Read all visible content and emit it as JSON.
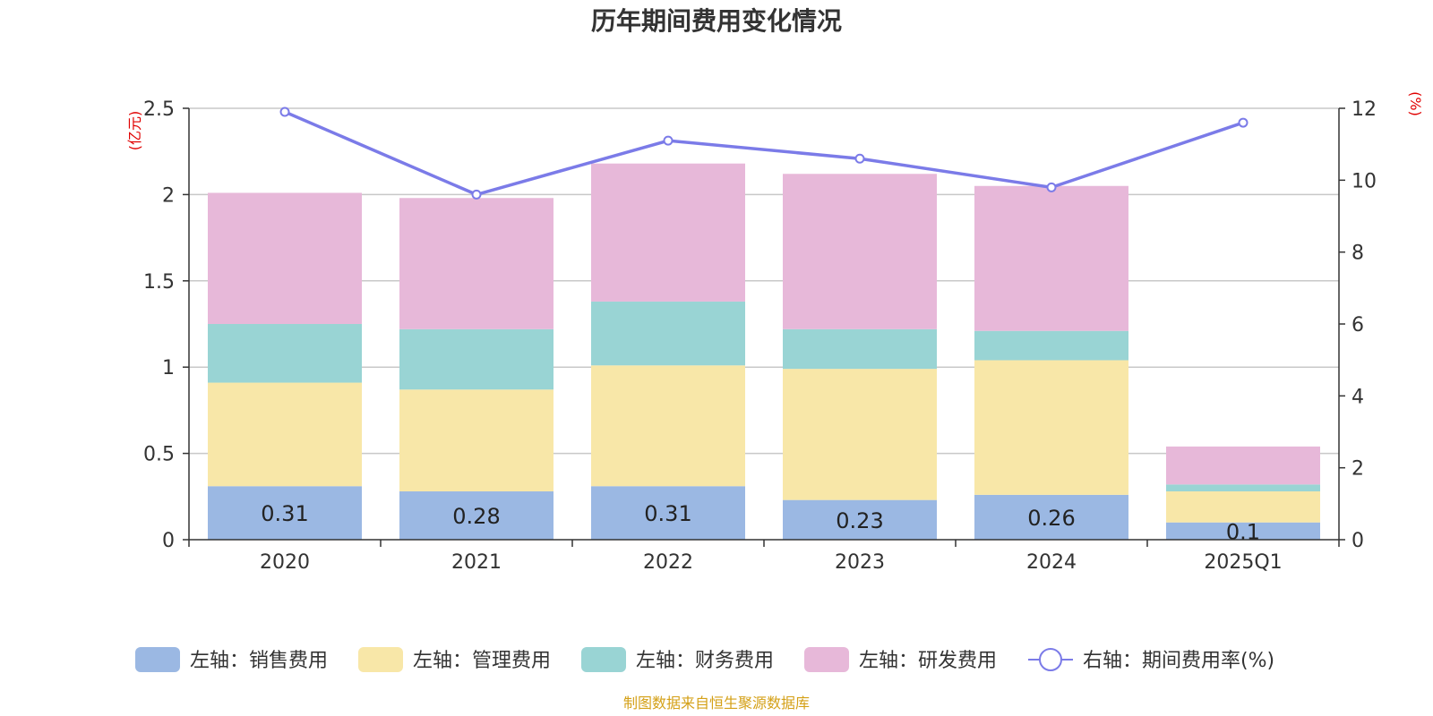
{
  "chart_data": {
    "type": "bar",
    "title": "历年期间费用变化情况",
    "categories": [
      "2020",
      "2021",
      "2022",
      "2023",
      "2024",
      "2025Q1"
    ],
    "series": [
      {
        "name": "左轴：销售费用",
        "axis": "left",
        "type": "bar",
        "color": "#9bb8e3",
        "values": [
          0.31,
          0.28,
          0.31,
          0.23,
          0.26,
          0.1
        ]
      },
      {
        "name": "左轴：管理费用",
        "axis": "left",
        "type": "bar",
        "color": "#f8e7a8",
        "values": [
          0.6,
          0.59,
          0.7,
          0.76,
          0.78,
          0.18
        ]
      },
      {
        "name": "左轴：财务费用",
        "axis": "left",
        "type": "bar",
        "color": "#99d4d4",
        "values": [
          0.34,
          0.35,
          0.37,
          0.23,
          0.17,
          0.04
        ]
      },
      {
        "name": "左轴：研发费用",
        "axis": "left",
        "type": "bar",
        "color": "#e7b8d9",
        "values": [
          0.76,
          0.76,
          0.8,
          0.9,
          0.84,
          0.22
        ]
      },
      {
        "name": "右轴：期间费用率(%)",
        "axis": "right",
        "type": "line",
        "color": "#7b7be8",
        "values": [
          11.9,
          9.6,
          11.1,
          10.6,
          9.8,
          11.6
        ]
      }
    ],
    "data_labels": [
      "0.31",
      "0.28",
      "0.31",
      "0.23",
      "0.26",
      "0.1"
    ],
    "left_axis": {
      "unit": "(亿元)",
      "ylim": [
        0,
        2.5
      ],
      "ticks": [
        "0",
        "0.5",
        "1",
        "1.5",
        "2",
        "2.5"
      ]
    },
    "right_axis": {
      "unit": "(%)",
      "ylim": [
        0,
        12
      ],
      "ticks": [
        "0",
        "2",
        "4",
        "6",
        "8",
        "10",
        "12"
      ]
    },
    "grid": true,
    "legend_position": "bottom",
    "source": "制图数据来自恒生聚源数据库"
  }
}
